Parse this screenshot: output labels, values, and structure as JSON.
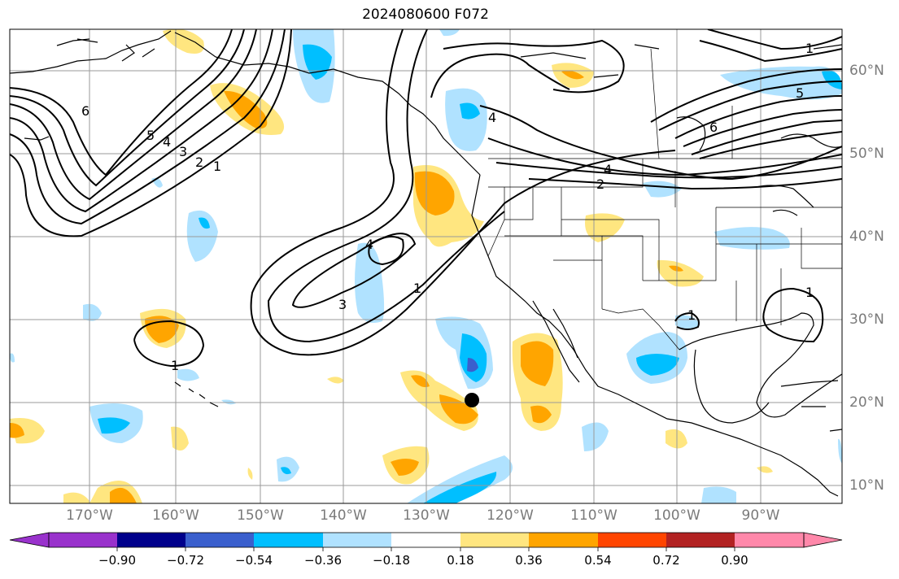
{
  "title": "2024080600 F072",
  "lon_labels": [
    "170°W",
    "160°W",
    "150°W",
    "140°W",
    "130°W",
    "120°W",
    "110°W",
    "100°W",
    "90°W"
  ],
  "lat_labels": [
    "60°N",
    "50°N",
    "40°N",
    "30°N",
    "20°N",
    "10°N"
  ],
  "colorbar": {
    "ticks": [
      "−0.90",
      "−0.72",
      "−0.54",
      "−0.36",
      "−0.18",
      "0.18",
      "0.36",
      "0.54",
      "0.72",
      "0.90"
    ],
    "colors": [
      "#9932cc",
      "#00008b",
      "#3a5fcd",
      "#00bfff",
      "#b0e2ff",
      "#ffffff",
      "#ffe680",
      "#ffa500",
      "#ff4500",
      "#b22222",
      "#ff88aa"
    ]
  },
  "contour_labels": [
    "6",
    "5",
    "4",
    "3",
    "2",
    "1",
    "4",
    "2",
    "4",
    "3",
    "1",
    "1",
    "1",
    "6",
    "5",
    "1",
    "4",
    "1"
  ],
  "icons": [
    "storm-center-marker"
  ]
}
